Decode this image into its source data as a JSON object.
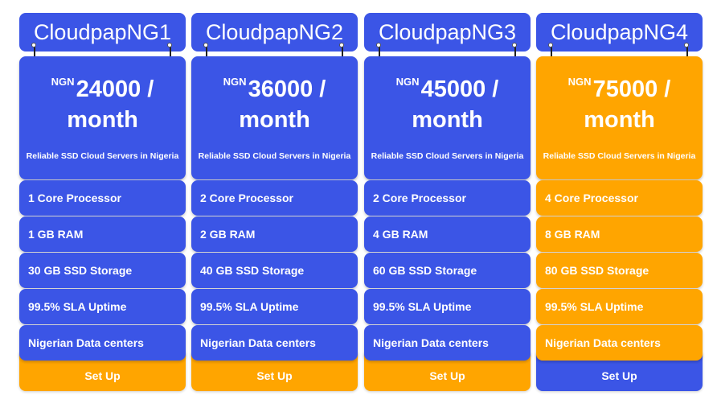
{
  "colors": {
    "blue": "#3b55e6",
    "orange": "#ffa500"
  },
  "plans": [
    {
      "name": "CloudpapNG1",
      "currency": "NGN",
      "price": "24000 /",
      "period": "month",
      "tagline": "Reliable SSD Cloud Servers in Nigeria",
      "features": [
        "1 Core Processor",
        "1 GB RAM",
        "30 GB SSD Storage",
        "99.5% SLA Uptime",
        "Nigerian Data centers"
      ],
      "button": "Set Up",
      "highlight": false
    },
    {
      "name": "CloudpapNG2",
      "currency": "NGN",
      "price": "36000 /",
      "period": "month",
      "tagline": "Reliable SSD Cloud Servers in Nigeria",
      "features": [
        "2 Core Processor",
        "2 GB RAM",
        "40 GB SSD Storage",
        "99.5% SLA Uptime",
        "Nigerian Data centers"
      ],
      "button": "Set Up",
      "highlight": false
    },
    {
      "name": "CloudpapNG3",
      "currency": "NGN",
      "price": "45000 /",
      "period": "month",
      "tagline": "Reliable SSD Cloud Servers in Nigeria",
      "features": [
        "2 Core Processor",
        "4 GB RAM",
        "60 GB SSD Storage",
        "99.5% SLA Uptime",
        "Nigerian Data centers"
      ],
      "button": "Set Up",
      "highlight": false
    },
    {
      "name": "CloudpapNG4",
      "currency": "NGN",
      "price": "75000 /",
      "period": "month",
      "tagline": "Reliable SSD Cloud Servers in Nigeria",
      "features": [
        "4 Core Processor",
        "8 GB RAM",
        "80 GB SSD Storage",
        "99.5% SLA Uptime",
        "Nigerian Data centers"
      ],
      "button": "Set Up",
      "highlight": true
    }
  ]
}
